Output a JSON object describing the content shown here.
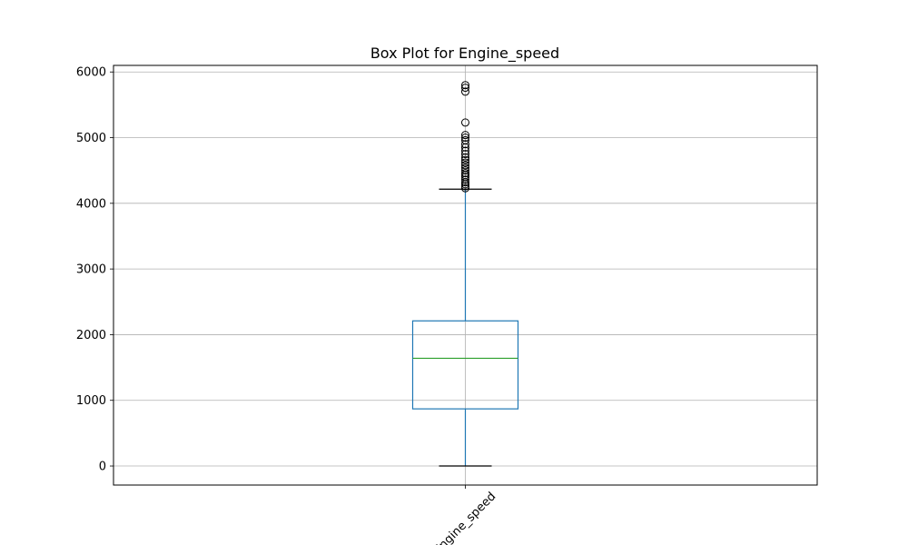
{
  "chart_data": {
    "type": "box",
    "title": "Box Plot for Engine_speed",
    "xlabel": "",
    "ylabel": "",
    "categories": [
      "Engine_speed"
    ],
    "ylim": [
      -290,
      6100
    ],
    "yticks": [
      0,
      1000,
      2000,
      3000,
      4000,
      5000,
      6000
    ],
    "grid": true,
    "boxes": [
      {
        "category": "Engine_speed",
        "whisker_low": 0,
        "q1": 870,
        "median": 1640,
        "q3": 2210,
        "whisker_high": 4215,
        "outliers": [
          4230,
          4260,
          4290,
          4320,
          4360,
          4400,
          4430,
          4460,
          4500,
          4540,
          4580,
          4620,
          4660,
          4700,
          4750,
          4800,
          4850,
          4900,
          4960,
          5000,
          5040,
          5230,
          5700,
          5760,
          5800
        ]
      }
    ],
    "colors": {
      "box": "#1f77b4",
      "median": "#2ca02c",
      "whisker_cap": "#000000",
      "outlier": "#000000",
      "grid": "#b0b0b0"
    }
  }
}
